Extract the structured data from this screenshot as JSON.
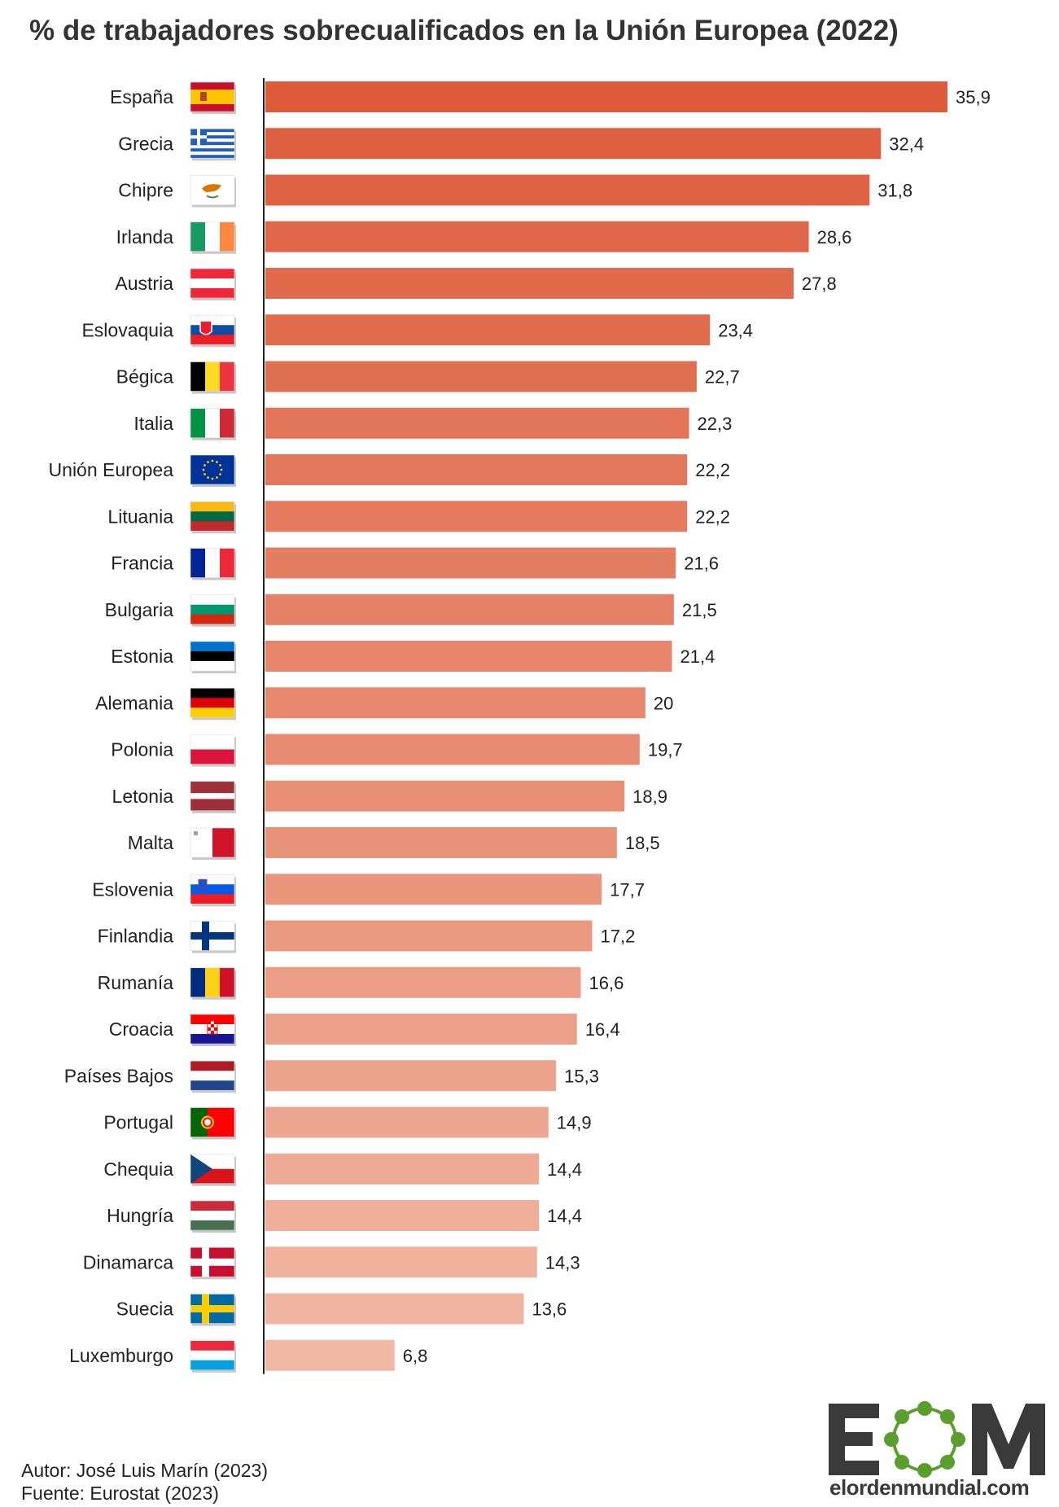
{
  "title": "% de trabajadores sobrecualificados en la Unión Europea (2022)",
  "chart_data": {
    "type": "bar",
    "orientation": "horizontal",
    "title": "% de trabajadores sobrecualificados en la Unión Europea (2022)",
    "xlabel": "",
    "ylabel": "",
    "xlim": [
      0,
      35.9
    ],
    "grid": false,
    "categories": [
      "España",
      "Grecia",
      "Chipre",
      "Irlanda",
      "Austria",
      "Eslovaquia",
      "Bégica",
      "Italia",
      "Unión Europea",
      "Lituania",
      "Francia",
      "Bulgaria",
      "Estonia",
      "Alemania",
      "Polonia",
      "Letonia",
      "Malta",
      "Eslovenia",
      "Finlandia",
      "Rumanía",
      "Croacia",
      "Países Bajos",
      "Portugal",
      "Chequia",
      "Hungría",
      "Dinamarca",
      "Suecia",
      "Luxemburgo"
    ],
    "values": [
      35.9,
      32.4,
      31.8,
      28.6,
      27.8,
      23.4,
      22.7,
      22.3,
      22.2,
      22.2,
      21.6,
      21.5,
      21.4,
      20,
      19.7,
      18.9,
      18.5,
      17.7,
      17.2,
      16.6,
      16.4,
      15.3,
      14.9,
      14.4,
      14.4,
      14.3,
      13.6,
      6.8
    ],
    "value_labels": [
      "35,9",
      "32,4",
      "31,8",
      "28,6",
      "27,8",
      "23,4",
      "22,7",
      "22,3",
      "22,2",
      "22,2",
      "21,6",
      "21,5",
      "21,4",
      "20",
      "19,7",
      "18,9",
      "18,5",
      "17,7",
      "17,2",
      "16,6",
      "16,4",
      "15,3",
      "14,9",
      "14,4",
      "14,4",
      "14,3",
      "13,6",
      "6,8"
    ],
    "flags": [
      "spain-flag-icon",
      "greece-flag-icon",
      "cyprus-flag-icon",
      "ireland-flag-icon",
      "austria-flag-icon",
      "slovakia-flag-icon",
      "belgium-flag-icon",
      "italy-flag-icon",
      "eu-flag-icon",
      "lithuania-flag-icon",
      "france-flag-icon",
      "bulgaria-flag-icon",
      "estonia-flag-icon",
      "germany-flag-icon",
      "poland-flag-icon",
      "latvia-flag-icon",
      "malta-flag-icon",
      "slovenia-flag-icon",
      "finland-flag-icon",
      "romania-flag-icon",
      "croatia-flag-icon",
      "netherlands-flag-icon",
      "portugal-flag-icon",
      "czechia-flag-icon",
      "hungary-flag-icon",
      "denmark-flag-icon",
      "sweden-flag-icon",
      "luxembourg-flag-icon"
    ],
    "bar_color_start": "#dd5c3c",
    "bar_color_end": "#f1b8a4"
  },
  "footer": {
    "author": "Autor: José Luis Marín (2023)",
    "source": "Fuente: Eurostat (2023)"
  },
  "logo": {
    "text": "EOM",
    "url": "elordenmundial.com",
    "color_text": "#3a3a3a",
    "color_accent": "#5a9e2e"
  }
}
